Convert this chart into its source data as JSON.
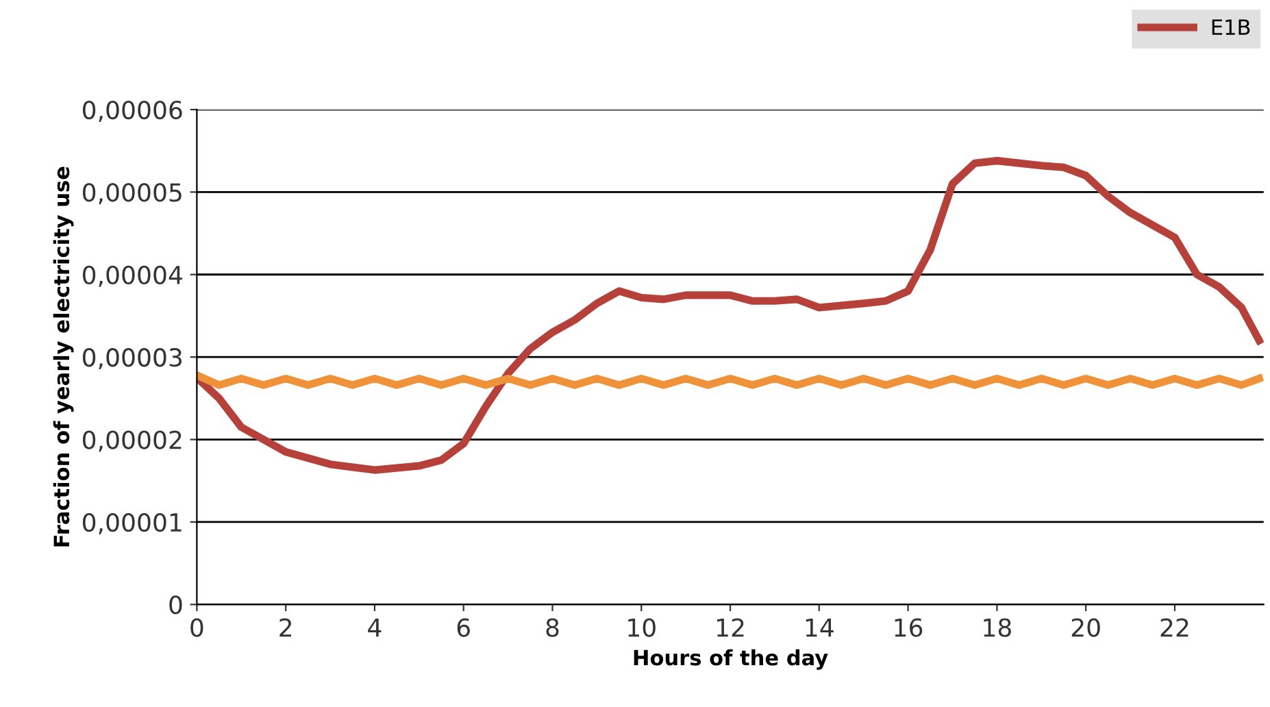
{
  "chart_data": {
    "type": "line",
    "xlabel": "Hours of the day",
    "ylabel": "Fraction of yearly electricity use",
    "xlim": [
      0,
      24
    ],
    "xticks": [
      0,
      2,
      4,
      6,
      8,
      10,
      12,
      14,
      16,
      18,
      20,
      22
    ],
    "ylim": [
      0,
      6e-05
    ],
    "yticks": [
      {
        "value": 0,
        "label": "0"
      },
      {
        "value": 1e-05,
        "label": "0,00001"
      },
      {
        "value": 2e-05,
        "label": "0,00002"
      },
      {
        "value": 3e-05,
        "label": "0,00003"
      },
      {
        "value": 4e-05,
        "label": "0,00004"
      },
      {
        "value": 5e-05,
        "label": "0,00005"
      },
      {
        "value": 6e-05,
        "label": "0,00006"
      }
    ],
    "grid": "y",
    "legend": "top right",
    "marker": "none",
    "line_style": "solid",
    "series": [
      {
        "name": "E1B",
        "color": "#b5413a",
        "x": [
          0,
          0.5,
          1,
          2,
          3,
          4,
          5,
          5.5,
          6,
          6.5,
          7,
          7.5,
          8,
          8.5,
          9,
          9.5,
          10,
          10.5,
          11,
          12,
          12.5,
          13,
          13.5,
          14,
          15,
          15.5,
          16,
          16.5,
          17,
          17.5,
          18,
          19,
          19.5,
          20,
          20.5,
          21,
          22,
          22.5,
          23,
          23.5,
          23.9
        ],
        "values": [
          2.75e-05,
          2.5e-05,
          2.15e-05,
          1.85e-05,
          1.7e-05,
          1.63e-05,
          1.68e-05,
          1.75e-05,
          1.95e-05,
          2.4e-05,
          2.8e-05,
          3.1e-05,
          3.3e-05,
          3.45e-05,
          3.65e-05,
          3.8e-05,
          3.72e-05,
          3.7e-05,
          3.75e-05,
          3.75e-05,
          3.68e-05,
          3.68e-05,
          3.7e-05,
          3.6e-05,
          3.65e-05,
          3.68e-05,
          3.8e-05,
          4.3e-05,
          5.1e-05,
          5.35e-05,
          5.38e-05,
          5.32e-05,
          5.3e-05,
          5.2e-05,
          4.95e-05,
          4.75e-05,
          4.45e-05,
          4e-05,
          3.85e-05,
          3.6e-05,
          3.2e-05
        ]
      },
      {
        "color": "#f0923a",
        "x": [
          0,
          0.5,
          1,
          1.5,
          2,
          2.5,
          3,
          3.5,
          4,
          4.5,
          5,
          5.5,
          6,
          6.5,
          7,
          7.5,
          8,
          8.5,
          9,
          9.5,
          10,
          10.5,
          11,
          11.5,
          12,
          12.5,
          13,
          13.5,
          14,
          14.5,
          15,
          15.5,
          16,
          16.5,
          17,
          17.5,
          18,
          18.5,
          19,
          19.5,
          20,
          20.5,
          21,
          21.5,
          22,
          22.5,
          23,
          23.5,
          23.9
        ],
        "values": [
          2.78e-05,
          2.66e-05,
          2.74e-05,
          2.66e-05,
          2.74e-05,
          2.66e-05,
          2.74e-05,
          2.66e-05,
          2.74e-05,
          2.66e-05,
          2.74e-05,
          2.66e-05,
          2.74e-05,
          2.66e-05,
          2.74e-05,
          2.66e-05,
          2.74e-05,
          2.66e-05,
          2.74e-05,
          2.66e-05,
          2.74e-05,
          2.66e-05,
          2.74e-05,
          2.66e-05,
          2.74e-05,
          2.66e-05,
          2.74e-05,
          2.66e-05,
          2.74e-05,
          2.66e-05,
          2.74e-05,
          2.66e-05,
          2.74e-05,
          2.66e-05,
          2.74e-05,
          2.66e-05,
          2.74e-05,
          2.66e-05,
          2.74e-05,
          2.66e-05,
          2.74e-05,
          2.66e-05,
          2.74e-05,
          2.66e-05,
          2.74e-05,
          2.66e-05,
          2.74e-05,
          2.66e-05,
          2.74e-05
        ]
      }
    ]
  }
}
